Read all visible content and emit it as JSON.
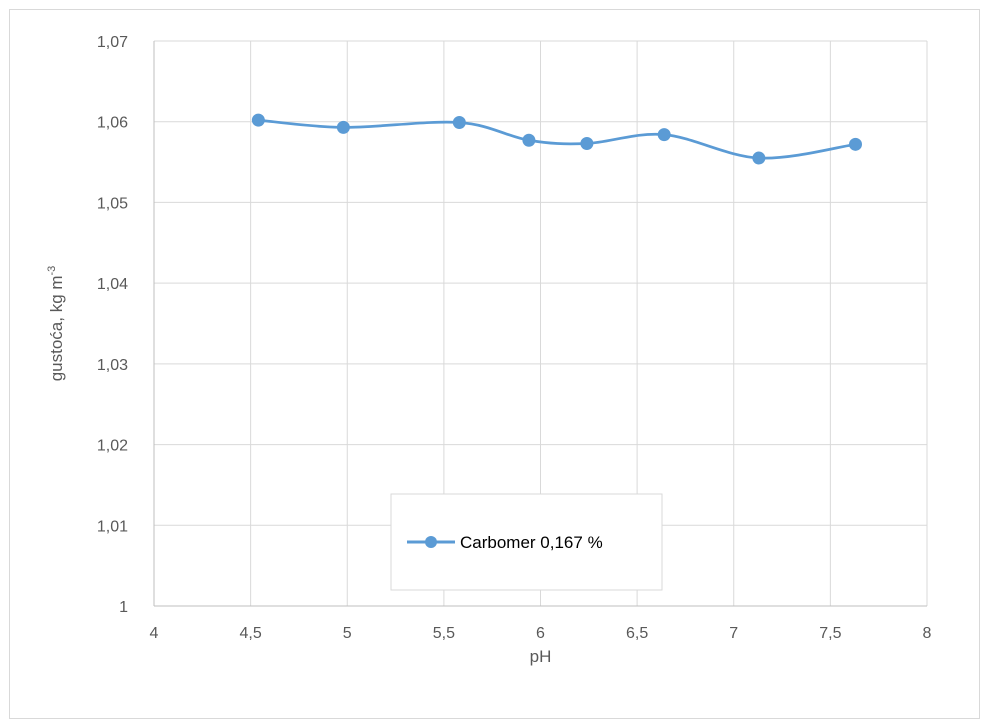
{
  "chart_data": {
    "type": "line",
    "smooth": true,
    "xlabel": "pH",
    "ylabel": "gustoća, kg m",
    "ylabel_superscript": "-3",
    "xlim": [
      4,
      8
    ],
    "ylim": [
      1,
      1.07
    ],
    "xticks": [
      "4",
      "4,5",
      "5",
      "5,5",
      "6",
      "6,5",
      "7",
      "7,5",
      "8"
    ],
    "yticks": [
      "1",
      "1,01",
      "1,02",
      "1,03",
      "1,04",
      "1,05",
      "1,06",
      "1,07"
    ],
    "grid": true,
    "legend_position": "bottom-center",
    "series": [
      {
        "name": "Carbomer 0,167 %",
        "color": "#5b9bd5",
        "x": [
          4.54,
          4.98,
          5.58,
          5.94,
          6.24,
          6.64,
          7.13,
          7.63
        ],
        "y": [
          1.0602,
          1.0593,
          1.0599,
          1.0577,
          1.0573,
          1.0584,
          1.0555,
          1.0572
        ]
      }
    ]
  }
}
